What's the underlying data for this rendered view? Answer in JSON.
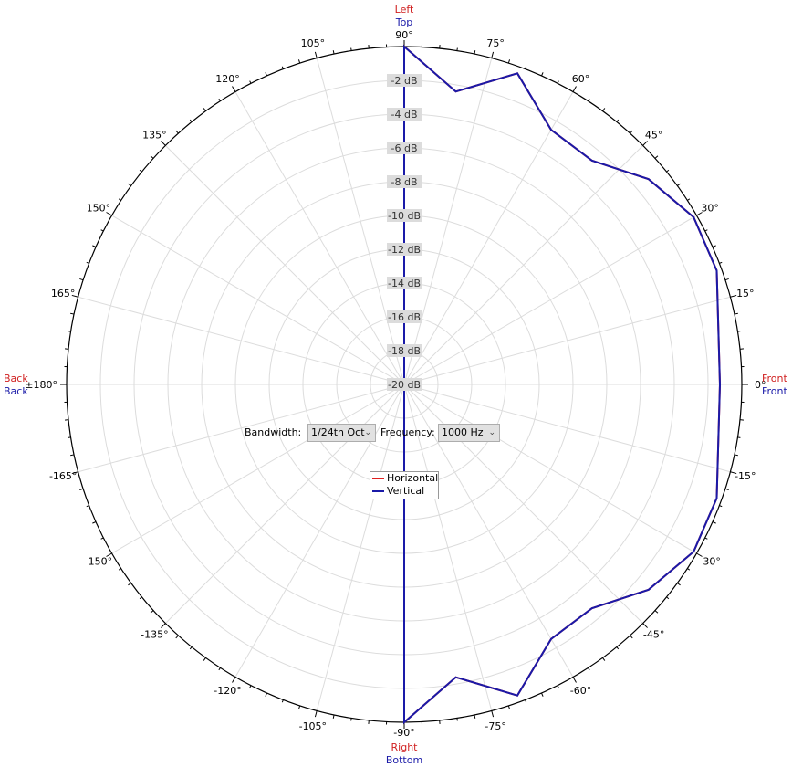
{
  "chart_data": {
    "type": "polar-line",
    "angle_unit": "degrees",
    "radial_axis": {
      "min": -20,
      "max": 0,
      "unit": "dB",
      "tick_labels": [
        "-2 dB",
        "-4 dB",
        "-6 dB",
        "-8 dB",
        "-10 dB",
        "-12 dB",
        "-14 dB",
        "-16 dB",
        "-18 dB",
        "-20 dB"
      ]
    },
    "angle_tick_labels": [
      "90°",
      "75°",
      "60°",
      "45°",
      "30°",
      "15°",
      "0°",
      "-15°",
      "-30°",
      "-45°",
      "-60°",
      "-75°",
      "-90°",
      "-105°",
      "-120°",
      "-135°",
      "-150°",
      "-165°",
      "±180°",
      "165°",
      "150°",
      "135°",
      "120°",
      "105°"
    ],
    "direction_labels": {
      "top": {
        "horizontal": "Left",
        "vertical": "Top"
      },
      "bottom": {
        "horizontal": "Right",
        "vertical": "Bottom"
      },
      "left": {
        "horizontal": "Back",
        "vertical": "Back"
      },
      "right": {
        "horizontal": "Front",
        "vertical": "Front"
      }
    },
    "grid": true,
    "legend_position": "center",
    "series": [
      {
        "name": "Horizontal",
        "color": "#e02020",
        "angles": [
          90,
          80,
          70,
          60,
          50,
          40,
          30,
          20,
          10,
          0,
          -10,
          -20,
          -30,
          -40,
          -50,
          -60,
          -70,
          -80,
          -90
        ],
        "values": [
          0,
          -2.4,
          -0.4,
          -2.6,
          -2.7,
          -1.1,
          -0.2,
          -0.3,
          -1.1,
          -1.3,
          -1.1,
          -0.3,
          -0.2,
          -1.1,
          -2.7,
          -2.6,
          -0.4,
          -2.4,
          0
        ]
      },
      {
        "name": "Vertical",
        "color": "#1a1aa8",
        "angles": [
          90,
          80,
          70,
          60,
          50,
          40,
          30,
          20,
          10,
          0,
          -10,
          -20,
          -30,
          -40,
          -50,
          -60,
          -70,
          -80,
          -90
        ],
        "values": [
          0,
          -2.4,
          -0.4,
          -2.6,
          -2.7,
          -1.1,
          -0.2,
          -0.3,
          -1.1,
          -1.3,
          -1.1,
          -0.3,
          -0.2,
          -1.1,
          -2.7,
          -2.6,
          -0.4,
          -2.4,
          0
        ]
      }
    ]
  },
  "controls": {
    "bandwidth_label": "Bandwidth:",
    "bandwidth_value": "1/24th Oct",
    "frequency_label": "Frequency:",
    "frequency_value": "1000 Hz"
  },
  "colors": {
    "horizontal": "#e02020",
    "vertical": "#1a1aa8",
    "grid": "#dcdcdc"
  }
}
